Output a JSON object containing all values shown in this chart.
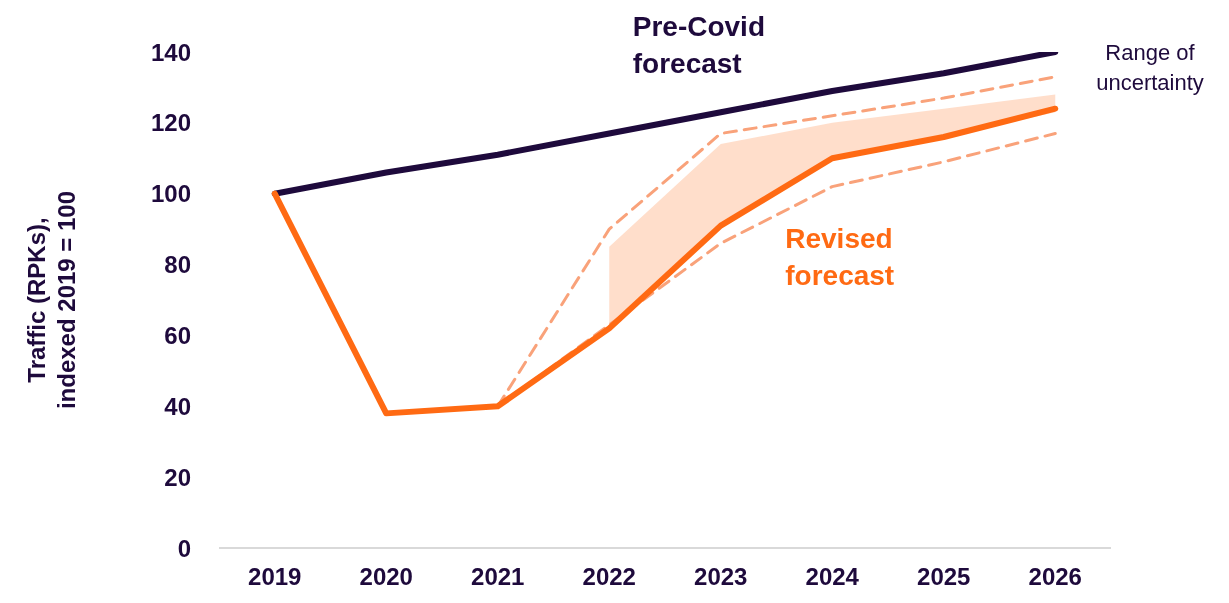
{
  "chart_data": {
    "type": "line",
    "ylabel": "Traffic (RPKs),\nindexed 2019 = 100",
    "categories": [
      "2019",
      "2020",
      "2021",
      "2022",
      "2023",
      "2024",
      "2025",
      "2026"
    ],
    "ylim": [
      0,
      140
    ],
    "yticks": [
      0,
      20,
      40,
      60,
      80,
      100,
      120,
      140
    ],
    "grid": false,
    "legend": false,
    "marker": "none",
    "series": [
      {
        "name": "Pre-Covid forecast",
        "color": "#1e0a3c",
        "values": [
          100,
          106,
          111,
          117,
          123,
          129,
          134,
          140
        ]
      },
      {
        "color": "#f9a27a",
        "line_style": "dashed",
        "values": [
          null,
          null,
          40,
          90,
          117,
          122,
          127,
          133
        ]
      },
      {
        "color": "#f9a27a",
        "line_style": "dashed",
        "values": [
          null,
          null,
          40,
          63,
          86,
          102,
          109,
          117
        ]
      },
      {
        "name": "Revised forecast",
        "color": "#ff6a13",
        "values": [
          100,
          38,
          40,
          62,
          91,
          110,
          116,
          124
        ],
        "lower": [
          null,
          null,
          null,
          63,
          92,
          110,
          116,
          123
        ],
        "upper": [
          null,
          null,
          null,
          85,
          114,
          120,
          124,
          128
        ]
      }
    ],
    "annotations": [
      "Range of uncertainty"
    ]
  }
}
